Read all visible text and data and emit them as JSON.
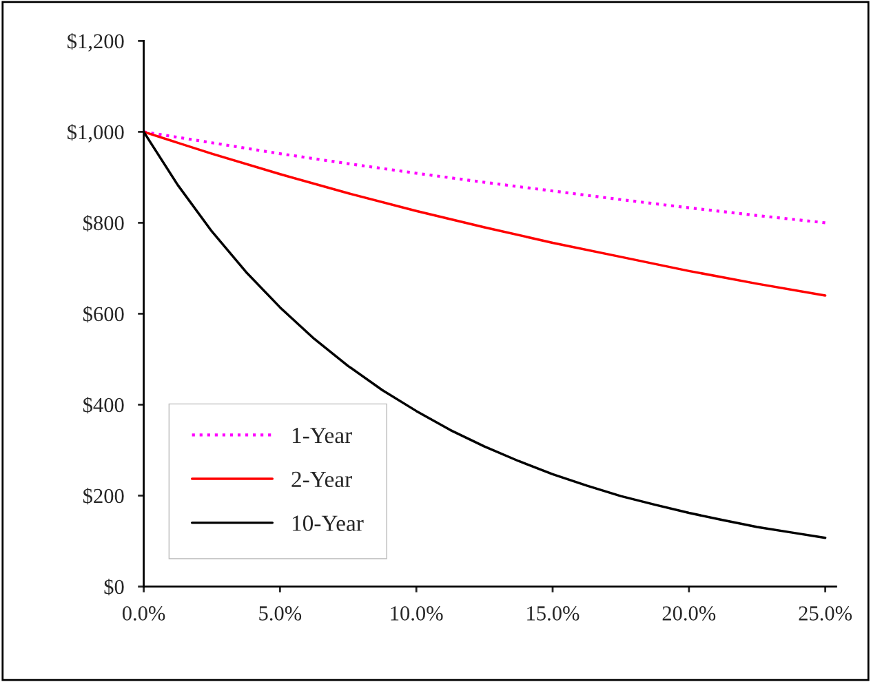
{
  "chart_data": {
    "type": "line",
    "x": [
      0,
      2.5,
      5,
      7.5,
      10,
      12.5,
      15,
      17.5,
      20,
      22.5,
      25
    ],
    "series": [
      {
        "name": "1-Year",
        "color": "#ff00ff",
        "line_style": "dotted",
        "values": [
          1000,
          976,
          952,
          930,
          909,
          889,
          870,
          851,
          833,
          816,
          800
        ]
      },
      {
        "name": "2-Year",
        "color": "#ff0000",
        "line_style": "solid",
        "values": [
          1000,
          952,
          907,
          865,
          826,
          790,
          756,
          725,
          694,
          666,
          640
        ]
      },
      {
        "name": "10-Year",
        "color": "#000000",
        "line_style": "solid",
        "x": [
          0,
          1.25,
          2.5,
          3.75,
          5,
          6.25,
          7.5,
          8.75,
          10,
          11.25,
          12.5,
          13.75,
          15,
          16.25,
          17.5,
          18.75,
          20,
          21.25,
          22.5,
          23.75,
          25
        ],
        "values": [
          1000,
          883,
          781,
          692,
          614,
          545,
          485,
          432,
          386,
          344,
          308,
          276,
          247,
          222,
          199,
          180,
          162,
          146,
          131,
          119,
          107
        ]
      }
    ],
    "xlim": [
      0,
      25.4
    ],
    "xticks": [
      {
        "value": 0,
        "label": "0.0%"
      },
      {
        "value": 5,
        "label": "5.0%"
      },
      {
        "value": 10,
        "label": "10.0%"
      },
      {
        "value": 15,
        "label": "15.0%"
      },
      {
        "value": 20,
        "label": "20.0%"
      },
      {
        "value": 25,
        "label": "25.0%"
      }
    ],
    "ylim": [
      0,
      1200
    ],
    "yticks": [
      {
        "value": 0,
        "label": "$0"
      },
      {
        "value": 200,
        "label": "$200"
      },
      {
        "value": 400,
        "label": "$400"
      },
      {
        "value": 600,
        "label": "$600"
      },
      {
        "value": 800,
        "label": "$800"
      },
      {
        "value": 1000,
        "label": "$1,000"
      },
      {
        "value": 1200,
        "label": "$1,200"
      }
    ],
    "grid": false,
    "legend": "bottom left",
    "marker": "none"
  }
}
